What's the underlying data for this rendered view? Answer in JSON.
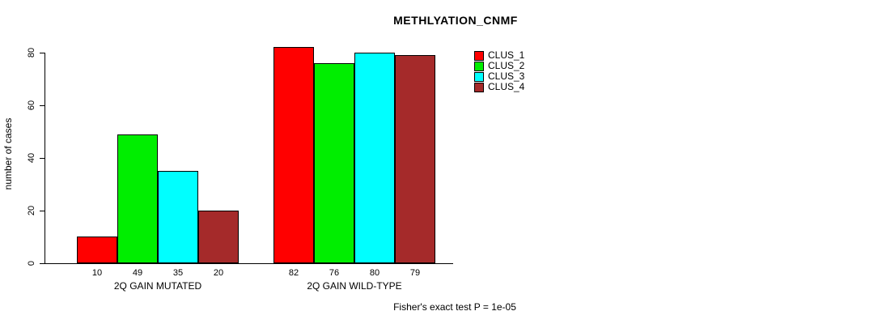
{
  "chart_data": {
    "type": "bar",
    "title": "METHLYATION_CNMF",
    "xlabel": "",
    "ylabel": "number of cases",
    "groups": [
      "2Q GAIN MUTATED",
      "2Q GAIN WILD-TYPE"
    ],
    "series": [
      {
        "name": "CLUS_1",
        "color": "#ff0000",
        "values": [
          10,
          82
        ]
      },
      {
        "name": "CLUS_2",
        "color": "#00ee00",
        "values": [
          49,
          76
        ]
      },
      {
        "name": "CLUS_3",
        "color": "#00ffff",
        "values": [
          35,
          80
        ]
      },
      {
        "name": "CLUS_4",
        "color": "#a52a2a",
        "values": [
          20,
          79
        ]
      }
    ],
    "bar_value_labels": [
      [
        10,
        49,
        35,
        20
      ],
      [
        82,
        76,
        80,
        79
      ]
    ],
    "yticks": [
      0,
      20,
      40,
      60,
      80
    ],
    "ylim": [
      0,
      82
    ],
    "grid": false,
    "legend_position": "right",
    "footer": "Fisher's exact test P = 1e-05"
  }
}
